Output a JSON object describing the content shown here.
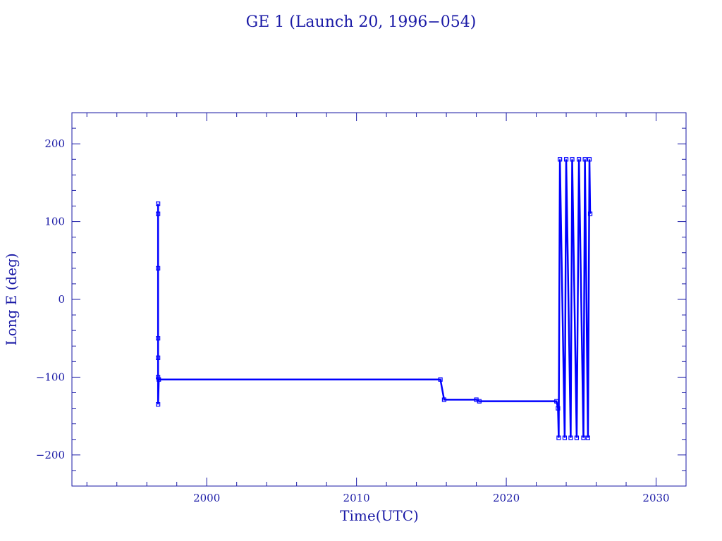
{
  "chart_data": {
    "type": "line",
    "title": "GE 1 (Launch 20, 1996−054)",
    "xlabel": "Time(UTC)",
    "ylabel": "Long E (deg)",
    "xlim": [
      1991,
      2032
    ],
    "ylim": [
      -240,
      240
    ],
    "x_ticks": [
      2000,
      2010,
      2020,
      2030
    ],
    "x_tick_labels": [
      "2000",
      "2010",
      "2020",
      "2030"
    ],
    "y_ticks": [
      200,
      100,
      0,
      -100,
      -200
    ],
    "y_tick_labels": [
      "200",
      "100",
      "0",
      "−100",
      "−200"
    ],
    "grid": false,
    "colors": {
      "series": "#0000ff",
      "axes": "#1a1aa6",
      "text": "#1a1aa6"
    },
    "series": [
      {
        "label_segments": [
          {
            "x": 1996.75,
            "y": 123
          },
          {
            "x": 1996.75,
            "y": 110
          },
          {
            "x": 1996.75,
            "y": 40
          },
          {
            "x": 1996.75,
            "y": -50
          },
          {
            "x": 1996.75,
            "y": -75
          },
          {
            "x": 1996.75,
            "y": -100
          },
          {
            "x": 1996.75,
            "y": -135
          },
          {
            "x": 1996.8,
            "y": -103
          },
          {
            "x": 2015.6,
            "y": -103
          },
          {
            "x": 2015.85,
            "y": -129
          },
          {
            "x": 2018.0,
            "y": -129
          },
          {
            "x": 2018.2,
            "y": -131
          },
          {
            "x": 2023.35,
            "y": -131
          },
          {
            "x": 2023.45,
            "y": -140
          },
          {
            "x": 2023.5,
            "y": -178
          },
          {
            "x": 2023.58,
            "y": 180
          },
          {
            "x": 2023.9,
            "y": -178
          },
          {
            "x": 2024.0,
            "y": 180
          },
          {
            "x": 2024.3,
            "y": -178
          },
          {
            "x": 2024.4,
            "y": 180
          },
          {
            "x": 2024.7,
            "y": -178
          },
          {
            "x": 2024.85,
            "y": 180
          },
          {
            "x": 2025.15,
            "y": -178
          },
          {
            "x": 2025.25,
            "y": 180
          },
          {
            "x": 2025.45,
            "y": -178
          },
          {
            "x": 2025.55,
            "y": 180
          },
          {
            "x": 2025.6,
            "y": 110
          }
        ]
      }
    ]
  }
}
